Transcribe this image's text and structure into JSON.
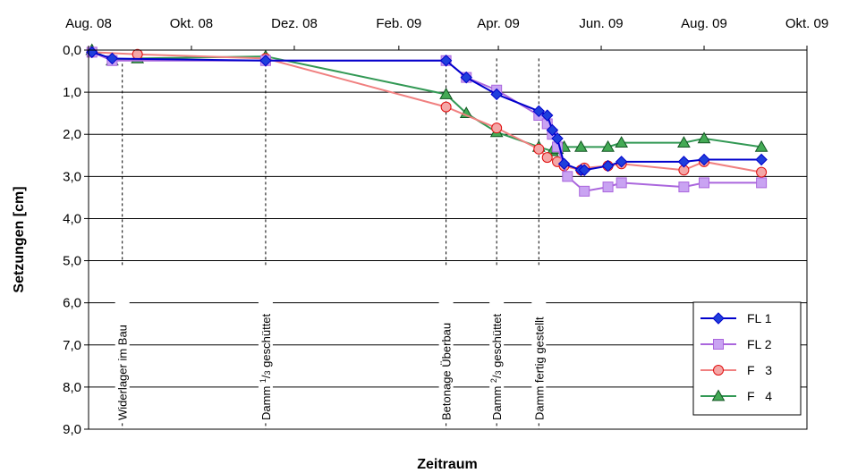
{
  "chart_data": {
    "type": "line",
    "title": "",
    "xlabel": "Zeitraum",
    "ylabel": "Setzungen [cm]",
    "x_ticks": [
      {
        "label": "Aug. 08",
        "date": "2008-08-01"
      },
      {
        "label": "Okt. 08",
        "date": "2008-10-01"
      },
      {
        "label": "Dez. 08",
        "date": "2008-12-01"
      },
      {
        "label": "Feb. 09",
        "date": "2009-02-01"
      },
      {
        "label": "Apr. 09",
        "date": "2009-04-01"
      },
      {
        "label": "Jun. 09",
        "date": "2009-06-01"
      },
      {
        "label": "Aug. 09",
        "date": "2009-08-01"
      },
      {
        "label": "Okt. 09",
        "date": "2009-10-01"
      }
    ],
    "xlim": [
      "2008-08-01",
      "2009-10-01"
    ],
    "y_ticks": [
      "0,0",
      "1,0",
      "2,0",
      "3,0",
      "4,0",
      "5,0",
      "6,0",
      "7,0",
      "8,0",
      "9,0"
    ],
    "ylim": [
      0,
      9
    ],
    "y_inverted": true,
    "grid": "horizontal",
    "legend_position": "bottom-right",
    "events": [
      {
        "label": "Widerlager im Bau",
        "date": "2008-08-21"
      },
      {
        "label_parts": [
          "Damm ",
          "1",
          "/",
          "3",
          " geschüttet"
        ],
        "date": "2008-11-14"
      },
      {
        "label": "Betonage Überbau",
        "date": "2009-03-01"
      },
      {
        "label_parts": [
          "Damm ",
          "2",
          "/",
          "3",
          " geschüttet"
        ],
        "date": "2009-03-31"
      },
      {
        "label": "Damm fertig gestellt",
        "date": "2009-04-25"
      }
    ],
    "series": [
      {
        "name": "FL 1",
        "color": "#0000cc",
        "fill": "#1f3fdc",
        "marker": "diamond",
        "x": [
          "2008-08-03",
          "2008-08-15",
          "2008-11-14",
          "2009-03-01",
          "2009-03-13",
          "2009-03-31",
          "2009-04-25",
          "2009-04-30",
          "2009-05-03",
          "2009-05-06",
          "2009-05-10",
          "2009-05-20",
          "2009-05-22",
          "2009-06-05",
          "2009-06-13",
          "2009-07-20",
          "2009-08-01",
          "2009-09-04"
        ],
        "y": [
          0.05,
          0.2,
          0.25,
          0.25,
          0.65,
          1.05,
          1.45,
          1.55,
          1.9,
          2.1,
          2.7,
          2.85,
          2.85,
          2.75,
          2.65,
          2.65,
          2.6,
          2.6
        ]
      },
      {
        "name": "FL 2",
        "color": "#aa66dd",
        "fill": "#c9a3f2",
        "marker": "square",
        "x": [
          "2008-08-03",
          "2008-08-15",
          "2008-11-14",
          "2009-03-01",
          "2009-03-13",
          "2009-03-31",
          "2009-04-25",
          "2009-04-30",
          "2009-05-03",
          "2009-05-06",
          "2009-05-12",
          "2009-05-22",
          "2009-06-05",
          "2009-06-13",
          "2009-07-20",
          "2009-08-01",
          "2009-09-04"
        ],
        "y": [
          0.05,
          0.25,
          0.25,
          0.25,
          0.65,
          0.95,
          1.55,
          1.75,
          2.0,
          2.3,
          3.0,
          3.35,
          3.25,
          3.15,
          3.25,
          3.15,
          3.15
        ]
      },
      {
        "name": "F   3",
        "color": "#f08080",
        "fill": "#f4a7a7",
        "marker": "circle",
        "x": [
          "2008-08-03",
          "2008-08-30",
          "2008-11-14",
          "2009-03-01",
          "2009-03-31",
          "2009-04-25",
          "2009-04-30",
          "2009-05-06",
          "2009-05-10",
          "2009-05-20",
          "2009-05-22",
          "2009-06-05",
          "2009-06-13",
          "2009-07-20",
          "2009-08-01",
          "2009-09-04"
        ],
        "y": [
          0.05,
          0.1,
          0.2,
          1.35,
          1.85,
          2.35,
          2.55,
          2.65,
          2.75,
          2.85,
          2.8,
          2.75,
          2.7,
          2.85,
          2.65,
          2.9
        ]
      },
      {
        "name": "F   4",
        "color": "#339955",
        "fill": "#44aa55",
        "marker": "triangle",
        "x": [
          "2008-08-03",
          "2008-08-15",
          "2008-08-30",
          "2008-11-14",
          "2009-03-01",
          "2009-03-13",
          "2009-03-31",
          "2009-04-25",
          "2009-05-03",
          "2009-05-06",
          "2009-05-10",
          "2009-05-20",
          "2009-06-05",
          "2009-06-13",
          "2009-07-20",
          "2009-08-01",
          "2009-09-04"
        ],
        "y": [
          0.0,
          0.25,
          0.2,
          0.15,
          1.05,
          1.5,
          1.95,
          2.3,
          2.4,
          2.35,
          2.3,
          2.3,
          2.3,
          2.2,
          2.2,
          2.1,
          2.3
        ]
      }
    ]
  }
}
